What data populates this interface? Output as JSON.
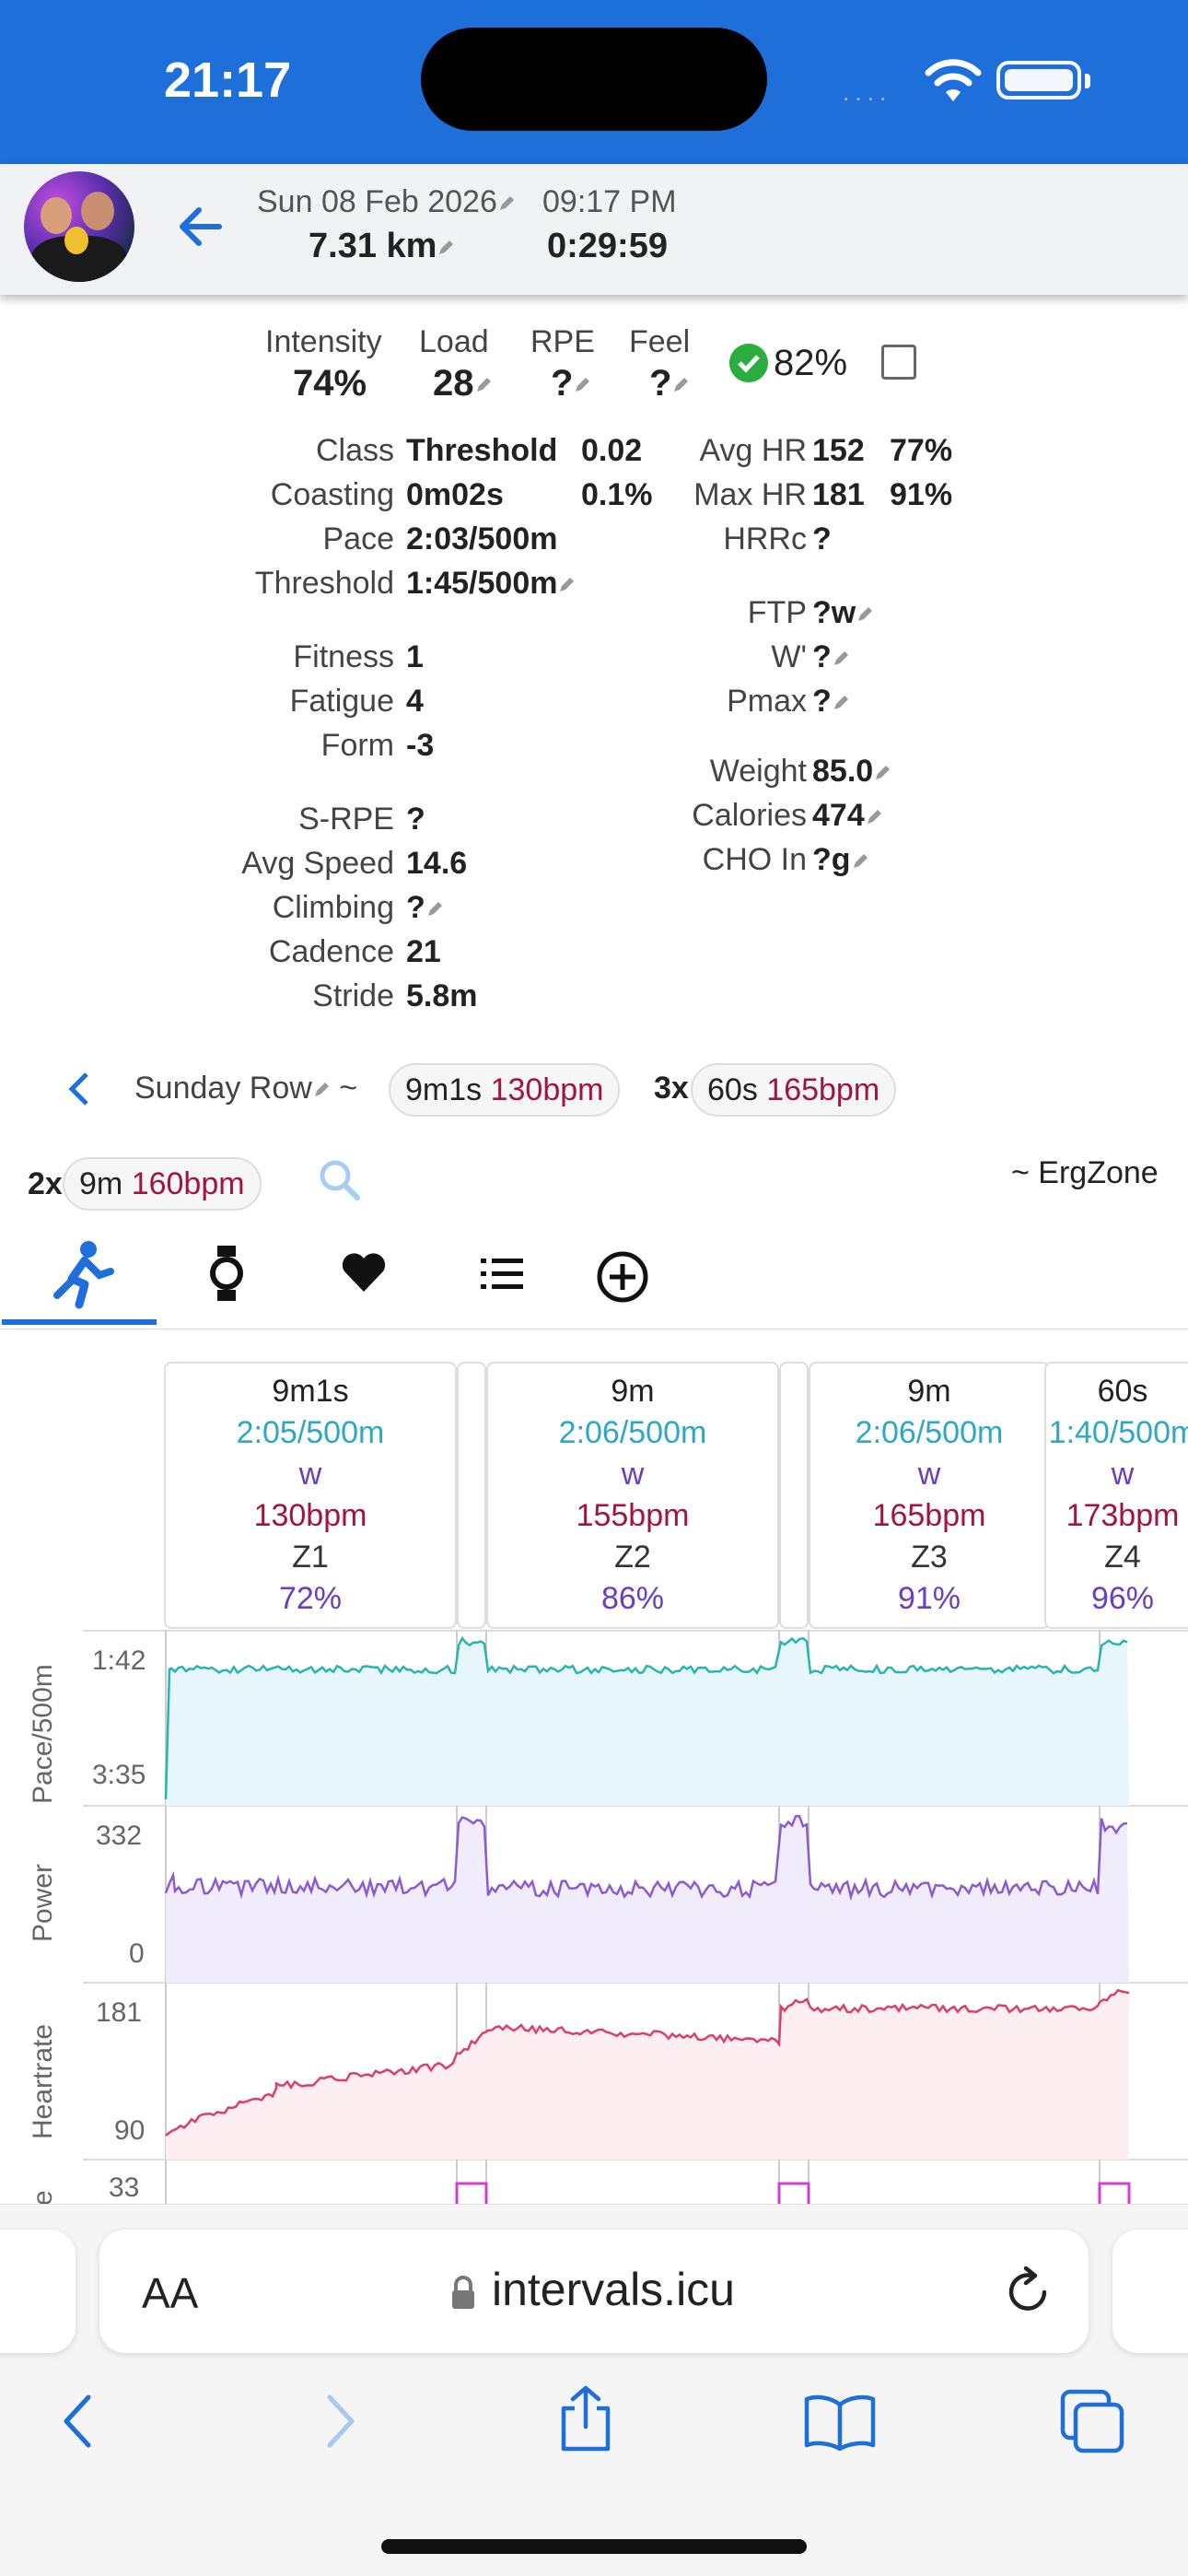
{
  "status_bar": {
    "time": "21:17",
    "signal": "····"
  },
  "activity_header": {
    "date": "Sun 08 Feb 2026",
    "time": "09:17 PM",
    "distance": "7.31 km",
    "duration": "0:29:59"
  },
  "metrics": {
    "intensity": {
      "label": "Intensity",
      "value": "74%"
    },
    "load": {
      "label": "Load",
      "value": "28"
    },
    "rpe": {
      "label": "RPE",
      "value": "?"
    },
    "feel": {
      "label": "Feel",
      "value": "?"
    },
    "compliance": "82%"
  },
  "details_left": [
    {
      "label": "Class",
      "value": "Threshold",
      "extra": "0.02"
    },
    {
      "label": "Coasting",
      "value": "0m02s",
      "extra": "0.1%"
    },
    {
      "label": "Pace",
      "value": "2:03/500m"
    },
    {
      "label": "Threshold",
      "value": "1:45/500m"
    },
    {
      "label": "Fitness",
      "value": "1"
    },
    {
      "label": "Fatigue",
      "value": "4"
    },
    {
      "label": "Form",
      "value": "-3"
    },
    {
      "label": "S-RPE",
      "value": "?"
    },
    {
      "label": "Avg Speed",
      "value": "14.6"
    },
    {
      "label": "Climbing",
      "value": "?"
    },
    {
      "label": "Cadence",
      "value": "21"
    },
    {
      "label": "Stride",
      "value": "5.8m"
    }
  ],
  "details_right": [
    {
      "label": "Avg HR",
      "value": "152",
      "extra": "77%"
    },
    {
      "label": "Max HR",
      "value": "181",
      "extra": "91%"
    },
    {
      "label": "HRRc",
      "value": "?"
    },
    {
      "label": "FTP",
      "value": "?w"
    },
    {
      "label": "W'",
      "value": "?"
    },
    {
      "label": "Pmax",
      "value": "?"
    },
    {
      "label": "Weight",
      "value": "85.0"
    },
    {
      "label": "Calories",
      "value": "474"
    },
    {
      "label": "CHO In",
      "value": "?g"
    }
  ],
  "workout": {
    "name": "Sunday Row",
    "tilde": "~",
    "step1": {
      "dur": "9m1s",
      "hr": "130bpm"
    },
    "rep2": "3x",
    "step2": {
      "dur": "60s",
      "hr": "165bpm"
    },
    "rep3": "2x",
    "step3": {
      "dur": "9m",
      "hr": "160bpm"
    },
    "source": "~ ErgZone"
  },
  "intervals": [
    {
      "dur": "9m1s",
      "pace": "2:05/500m",
      "power": "w",
      "hr": "130bpm",
      "zone": "Z1",
      "pct": "72%"
    },
    {
      "dur": "9m",
      "pace": "2:06/500m",
      "power": "w",
      "hr": "155bpm",
      "zone": "Z2",
      "pct": "86%"
    },
    {
      "dur": "9m",
      "pace": "2:06/500m",
      "power": "w",
      "hr": "165bpm",
      "zone": "Z3",
      "pct": "91%"
    },
    {
      "dur": "60s",
      "pace": "1:40/500m",
      "power": "w",
      "hr": "173bpm",
      "zone": "Z4",
      "pct": "96%"
    }
  ],
  "charts": {
    "pace": {
      "title": "Pace/500m",
      "top": "1:42",
      "bottom": "3:35",
      "color": "#2ab3b0"
    },
    "power": {
      "title": "Power",
      "top": "332",
      "bottom": "0",
      "color": "#8a5cd0"
    },
    "heartrate": {
      "title": "Heartrate",
      "top": "181",
      "bottom": "90",
      "color": "#d9406a"
    },
    "cadence": {
      "title": "e",
      "top": "33",
      "color": "#d23fd0"
    }
  },
  "browser": {
    "aa_label": "AA",
    "url": "intervals.icu"
  }
}
